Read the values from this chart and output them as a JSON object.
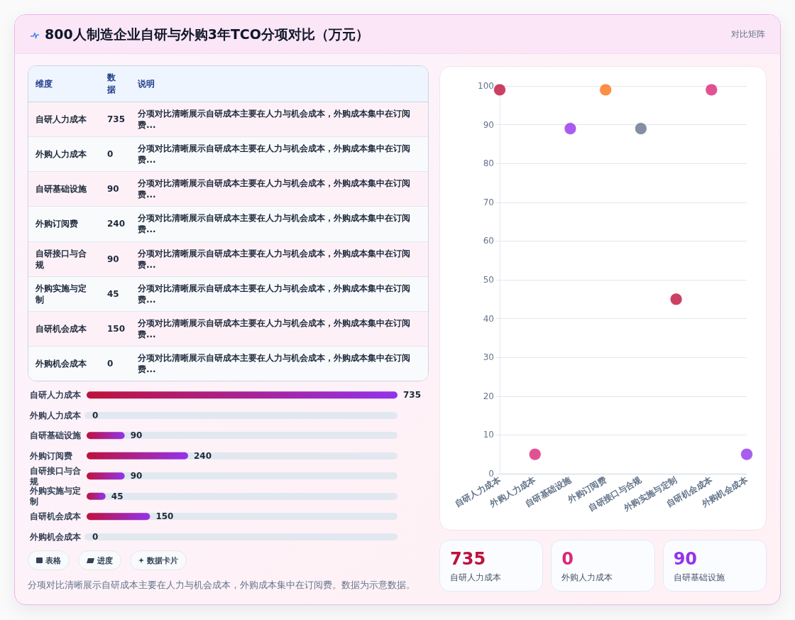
{
  "chart_data": [
    {
      "type": "other",
      "title": "800人制造企业自研与外购3年TCO分项对比（万元）",
      "subtitle": "对比矩阵",
      "categories": [
        "自研人力成本",
        "外购人力成本",
        "自研基础设施",
        "外购订阅费",
        "自研接口与合规",
        "外购实施与定制",
        "自研机会成本",
        "外购机会成本"
      ],
      "values": [
        735,
        0,
        90,
        240,
        90,
        45,
        150,
        0
      ],
      "data_labels": true,
      "annotations": [
        "维度",
        "数据",
        "说明",
        "分项对比清晰展示自研成本主要在人力与机会成本，外购成本集中在订阅费...",
        "分项对比清晰展示自研成本主要在人力与机会成本，外购成本集中在订阅费...",
        "分项对比清晰展示自研成本主要在人力与机会成本，外购成本集中在订阅费...",
        "分项对比清晰展示自研成本主要在人力与机会成本，外购成本集中在订阅费...",
        "分项对比清晰展示自研成本主要在人力与机会成本，外购成本集中在订阅费...",
        "分项对比清晰展示自研成本主要在人力与机会成本，外购成本集中在订阅费...",
        "分项对比清晰展示自研成本主要在人力与机会成本，外购成本集中在订阅费...",
        "分项对比清晰展示自研成本主要在人力与机会成本，外购成本集中在订阅费..."
      ]
    },
    {
      "type": "bar",
      "orientation": "horizontal",
      "categories": [
        "自研人力成本",
        "外购人力成本",
        "自研基础设施",
        "外购订阅费",
        "自研接口与合规",
        "外购实施与定制",
        "自研机会成本",
        "外购机会成本"
      ],
      "values": [
        735,
        0,
        90,
        240,
        90,
        45,
        150,
        0
      ],
      "data_labels": true,
      "color": "#be123c",
      "annotations": [
        "表格",
        "进度",
        "数据卡片",
        "分项对比清晰展示自研成本主要在人力与机会成本，外购成本集中在订阅费。数据为示意数据。"
      ]
    },
    {
      "type": "scatter",
      "categories": [
        "自研人力成本",
        "外购人力成本",
        "自研基础设施",
        "外购订阅费",
        "自研接口与合规",
        "外购实施与定制",
        "自研机会成本",
        "外购机会成本"
      ],
      "values": [
        99,
        5,
        89,
        99,
        89,
        45,
        99,
        5
      ],
      "colors": [
        "#be123c",
        "#db2777",
        "#9333ea",
        "#f97316",
        "#64748b",
        "#be123c",
        "#db2777",
        "#9333ea"
      ],
      "ylim": [
        0,
        100
      ],
      "yticks": [
        0,
        10,
        20,
        30,
        40,
        50,
        60,
        70,
        80,
        90,
        100
      ],
      "grid": "y",
      "marker": "circle"
    },
    {
      "type": "other",
      "categories": [
        "自研人力成本",
        "外购人力成本",
        "自研基础设施"
      ],
      "values": [
        735,
        0,
        90
      ],
      "data_labels": true
    }
  ]
}
